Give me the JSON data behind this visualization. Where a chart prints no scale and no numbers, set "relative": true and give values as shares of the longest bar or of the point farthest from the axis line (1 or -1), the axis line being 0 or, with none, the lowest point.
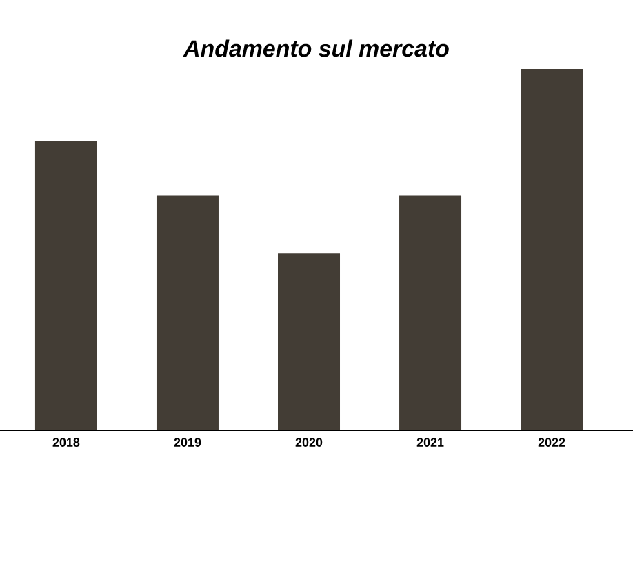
{
  "chart_data": {
    "type": "bar",
    "title": "Andamento sul mercato",
    "categories": [
      "2018",
      "2019",
      "2020",
      "2021",
      "2022"
    ],
    "values": [
      0.8,
      0.65,
      0.49,
      0.65,
      1
    ],
    "color": "#433d35",
    "relative": true
  }
}
